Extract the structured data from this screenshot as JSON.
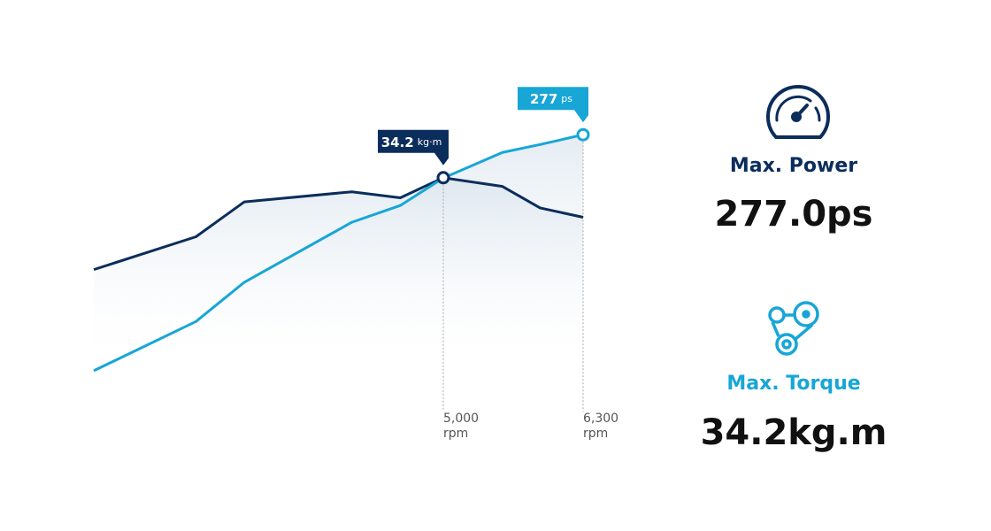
{
  "chart_data": {
    "type": "line",
    "x": [
      1750,
      2700,
      3150,
      4150,
      4600,
      5000,
      5550,
      5900,
      6300
    ],
    "xlim": [
      1750,
      6300
    ],
    "xticks": [
      {
        "value": 5000,
        "label": "5,000"
      },
      {
        "value": 6300,
        "label": "6,300"
      }
    ],
    "x_unit": "rpm",
    "ylim": [
      0,
      324
    ],
    "y2lim": [
      0,
      47.5
    ],
    "series": [
      {
        "color": "#0b2d5b",
        "axis": "y2",
        "unit": "kg·m",
        "values": [
          20.5,
          25.4,
          30.6,
          32.1,
          31.2,
          34.2,
          32.9,
          29.7,
          28.3
        ],
        "value_labels": [
          null,
          null,
          null,
          null,
          null,
          "34.2",
          null,
          null,
          null
        ]
      },
      {
        "color": "#17a6d6",
        "unit": "ps",
        "values": [
          37,
          87,
          127,
          188,
          205,
          233,
          259,
          267,
          277
        ],
        "value_labels": [
          null,
          null,
          null,
          null,
          null,
          null,
          null,
          null,
          "277"
        ]
      }
    ]
  },
  "specs": [
    {
      "title": "Max. Power",
      "value": "277.0ps"
    },
    {
      "title": "Max. Torque",
      "value": "34.2kg.m"
    }
  ]
}
